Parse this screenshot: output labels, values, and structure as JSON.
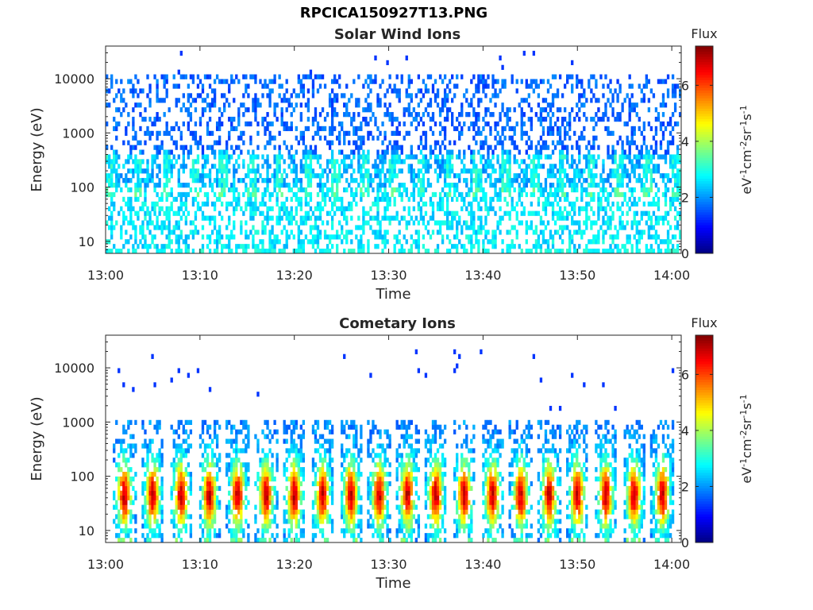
{
  "figure_title": "RPCICA150927T13.PNG",
  "chart_data": [
    {
      "type": "heatmap",
      "title": "Solar Wind Ions",
      "xlabel": "Time",
      "ylabel": "Energy (eV)",
      "y_scale": "log",
      "ylim": [
        6,
        40000
      ],
      "xlim": [
        "13:00",
        "14:01"
      ],
      "x_ticks": [
        "13:00",
        "13:10",
        "13:20",
        "13:30",
        "13:40",
        "13:50",
        "14:00"
      ],
      "y_ticks": [
        "10",
        "100",
        "1000",
        "10000"
      ],
      "colorbar": {
        "title": "Flux",
        "label": "eV-1cm-2sr-1s-1",
        "range": [
          0,
          7.4
        ],
        "ticks": [
          "0",
          "2",
          "4",
          "6"
        ],
        "colormap": "jet"
      },
      "background": "white",
      "description_values": {
        "bulk_energy_range_eV": [
          100,
          10000
        ],
        "typical_flux": [
          1.5,
          3.2
        ]
      }
    },
    {
      "type": "heatmap",
      "title": "Cometary Ions",
      "xlabel": "Time",
      "ylabel": "Energy (eV)",
      "y_scale": "log",
      "ylim": [
        6,
        40000
      ],
      "xlim": [
        "13:00",
        "14:01"
      ],
      "x_ticks": [
        "13:00",
        "13:10",
        "13:20",
        "13:30",
        "13:40",
        "13:50",
        "14:00"
      ],
      "y_ticks": [
        "10",
        "100",
        "1000",
        "10000"
      ],
      "colorbar": {
        "title": "Flux",
        "label": "eV-1cm-2sr-1s-1",
        "range": [
          0,
          7.4
        ],
        "ticks": [
          "0",
          "2",
          "4",
          "6"
        ],
        "colormap": "jet"
      },
      "burst_times": [
        "13:02",
        "13:05",
        "13:08",
        "13:11",
        "13:14",
        "13:17",
        "13:20",
        "13:23",
        "13:26",
        "13:29",
        "13:32",
        "13:35",
        "13:38",
        "13:41",
        "13:44",
        "13:47",
        "13:50",
        "13:53",
        "13:56",
        "13:59"
      ],
      "burst_peak_energy_eV": 45,
      "burst_peak_flux": 6.5
    }
  ]
}
